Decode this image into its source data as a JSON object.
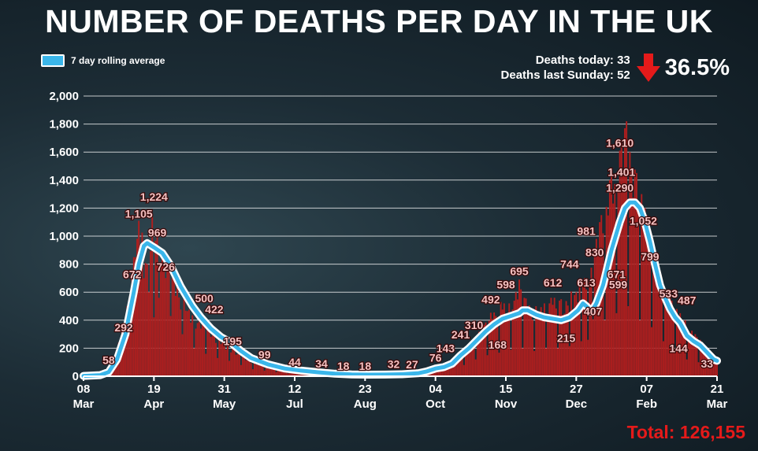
{
  "headline": "NUMBER OF DEATHS PER DAY IN THE UK",
  "legend": {
    "label": "7 day rolling average",
    "color": "#3ab6ea"
  },
  "stats": {
    "today_label": "Deaths today: 33",
    "last_sunday_label": "Deaths last Sunday: 52",
    "change": "36.5%",
    "change_direction": "down",
    "change_color": "#e51a1a"
  },
  "total": "Total: 126,155",
  "colors": {
    "bars": "#b01e1e",
    "line": "#3ab6ea",
    "line_outline": "#ffffff",
    "label_fill": "#f4c2c2"
  },
  "chart_data": {
    "type": "bar",
    "ylim": [
      0,
      2000
    ],
    "ytick_labels": [
      "0",
      "200",
      "400",
      "600",
      "800",
      "1,000",
      "1,200",
      "1,400",
      "1,600",
      "1,800",
      "2,000"
    ],
    "xticks": [
      {
        "day": 0,
        "date": "2020-03-08",
        "line1": "08",
        "line2": "Mar"
      },
      {
        "day": 42,
        "date": "2020-04-19",
        "line1": "19",
        "line2": "Apr"
      },
      {
        "day": 84,
        "date": "2020-05-31",
        "line1": "31",
        "line2": "May"
      },
      {
        "day": 126,
        "date": "2020-07-12",
        "line1": "12",
        "line2": "Jul"
      },
      {
        "day": 168,
        "date": "2020-08-23",
        "line1": "23",
        "line2": "Aug"
      },
      {
        "day": 210,
        "date": "2020-10-04",
        "line1": "04",
        "line2": "Oct"
      },
      {
        "day": 252,
        "date": "2020-11-15",
        "line1": "15",
        "line2": "Nov"
      },
      {
        "day": 294,
        "date": "2020-12-27",
        "line1": "27",
        "line2": "Dec"
      },
      {
        "day": 336,
        "date": "2021-02-07",
        "line1": "07",
        "line2": "Feb"
      },
      {
        "day": 378,
        "date": "2021-03-21",
        "line1": "21",
        "line2": "Mar"
      }
    ],
    "series": [
      {
        "name": "7 day rolling average",
        "type": "line",
        "points": [
          [
            0,
            2
          ],
          [
            10,
            8
          ],
          [
            15,
            30
          ],
          [
            20,
            120
          ],
          [
            25,
            300
          ],
          [
            30,
            600
          ],
          [
            33,
            800
          ],
          [
            36,
            930
          ],
          [
            38,
            950
          ],
          [
            42,
            920
          ],
          [
            47,
            880
          ],
          [
            52,
            790
          ],
          [
            58,
            640
          ],
          [
            65,
            500
          ],
          [
            70,
            420
          ],
          [
            76,
            340
          ],
          [
            82,
            280
          ],
          [
            88,
            240
          ],
          [
            94,
            180
          ],
          [
            100,
            130
          ],
          [
            110,
            85
          ],
          [
            120,
            55
          ],
          [
            130,
            40
          ],
          [
            140,
            28
          ],
          [
            150,
            18
          ],
          [
            160,
            13
          ],
          [
            170,
            11
          ],
          [
            180,
            12
          ],
          [
            190,
            14
          ],
          [
            200,
            22
          ],
          [
            205,
            35
          ],
          [
            210,
            55
          ],
          [
            215,
            65
          ],
          [
            220,
            90
          ],
          [
            225,
            150
          ],
          [
            230,
            200
          ],
          [
            235,
            260
          ],
          [
            240,
            320
          ],
          [
            245,
            370
          ],
          [
            250,
            410
          ],
          [
            255,
            430
          ],
          [
            260,
            450
          ],
          [
            262,
            470
          ],
          [
            265,
            470
          ],
          [
            270,
            440
          ],
          [
            275,
            420
          ],
          [
            280,
            410
          ],
          [
            285,
            400
          ],
          [
            290,
            420
          ],
          [
            295,
            470
          ],
          [
            298,
            520
          ],
          [
            300,
            500
          ],
          [
            303,
            460
          ],
          [
            306,
            520
          ],
          [
            310,
            650
          ],
          [
            315,
            900
          ],
          [
            320,
            1100
          ],
          [
            323,
            1200
          ],
          [
            326,
            1240
          ],
          [
            329,
            1240
          ],
          [
            332,
            1200
          ],
          [
            335,
            1100
          ],
          [
            338,
            960
          ],
          [
            341,
            800
          ],
          [
            344,
            650
          ],
          [
            347,
            560
          ],
          [
            350,
            480
          ],
          [
            353,
            420
          ],
          [
            356,
            380
          ],
          [
            360,
            290
          ],
          [
            364,
            250
          ],
          [
            368,
            220
          ],
          [
            372,
            170
          ],
          [
            376,
            120
          ],
          [
            378,
            110
          ]
        ]
      }
    ],
    "daily_peaks": [
      [
        10,
        10
      ],
      [
        15,
        40
      ],
      [
        20,
        200
      ],
      [
        23,
        320
      ],
      [
        26,
        500
      ],
      [
        29,
        700
      ],
      [
        31,
        1000
      ],
      [
        33,
        1110
      ],
      [
        34,
        950
      ],
      [
        36,
        1100
      ],
      [
        38,
        800
      ],
      [
        40,
        1050
      ],
      [
        42,
        1224
      ],
      [
        44,
        1050
      ],
      [
        45,
        950
      ],
      [
        47,
        900
      ],
      [
        48,
        800
      ],
      [
        50,
        850
      ],
      [
        52,
        700
      ],
      [
        54,
        700
      ],
      [
        56,
        650
      ],
      [
        58,
        560
      ],
      [
        60,
        600
      ],
      [
        62,
        500
      ],
      [
        64,
        450
      ],
      [
        66,
        420
      ],
      [
        68,
        380
      ],
      [
        70,
        400
      ],
      [
        72,
        430
      ],
      [
        74,
        350
      ],
      [
        76,
        330
      ],
      [
        78,
        300
      ],
      [
        80,
        260
      ],
      [
        82,
        270
      ],
      [
        84,
        230
      ],
      [
        86,
        220
      ],
      [
        88,
        200
      ],
      [
        90,
        190
      ],
      [
        92,
        170
      ],
      [
        95,
        150
      ],
      [
        100,
        110
      ],
      [
        105,
        90
      ],
      [
        110,
        75
      ],
      [
        115,
        60
      ],
      [
        120,
        48
      ],
      [
        125,
        40
      ],
      [
        130,
        32
      ],
      [
        140,
        25
      ],
      [
        150,
        20
      ],
      [
        160,
        16
      ],
      [
        170,
        14
      ],
      [
        180,
        15
      ],
      [
        190,
        18
      ],
      [
        200,
        25
      ],
      [
        205,
        40
      ],
      [
        210,
        65
      ],
      [
        215,
        90
      ],
      [
        220,
        120
      ],
      [
        225,
        160
      ],
      [
        228,
        210
      ],
      [
        232,
        250
      ],
      [
        235,
        300
      ],
      [
        238,
        350
      ],
      [
        241,
        400
      ],
      [
        244,
        480
      ],
      [
        246,
        430
      ],
      [
        248,
        500
      ],
      [
        250,
        560
      ],
      [
        252,
        480
      ],
      [
        254,
        520
      ],
      [
        256,
        560
      ],
      [
        258,
        600
      ],
      [
        260,
        690
      ],
      [
        261,
        620
      ],
      [
        263,
        560
      ],
      [
        265,
        550
      ],
      [
        267,
        460
      ],
      [
        270,
        500
      ],
      [
        272,
        480
      ],
      [
        275,
        520
      ],
      [
        277,
        480
      ],
      [
        280,
        600
      ],
      [
        282,
        520
      ],
      [
        285,
        550
      ],
      [
        287,
        480
      ],
      [
        290,
        650
      ],
      [
        292,
        560
      ],
      [
        294,
        600
      ],
      [
        296,
        640
      ],
      [
        298,
        780
      ],
      [
        300,
        620
      ],
      [
        302,
        720
      ],
      [
        304,
        830
      ],
      [
        306,
        980
      ],
      [
        308,
        1100
      ],
      [
        310,
        1200
      ],
      [
        312,
        1300
      ],
      [
        314,
        1400
      ],
      [
        316,
        1450
      ],
      [
        318,
        1500
      ],
      [
        320,
        1610
      ],
      [
        322,
        1720
      ],
      [
        324,
        1820
      ],
      [
        326,
        1600
      ],
      [
        328,
        1500
      ],
      [
        330,
        1450
      ],
      [
        332,
        1350
      ],
      [
        334,
        1250
      ],
      [
        336,
        1150
      ],
      [
        338,
        1050
      ],
      [
        340,
        900
      ],
      [
        342,
        800
      ],
      [
        344,
        700
      ],
      [
        346,
        650
      ],
      [
        348,
        600
      ],
      [
        350,
        560
      ],
      [
        352,
        520
      ],
      [
        354,
        480
      ],
      [
        356,
        450
      ],
      [
        358,
        420
      ],
      [
        360,
        380
      ],
      [
        362,
        330
      ],
      [
        364,
        320
      ],
      [
        366,
        280
      ],
      [
        368,
        260
      ],
      [
        370,
        230
      ],
      [
        372,
        190
      ],
      [
        374,
        170
      ],
      [
        376,
        130
      ],
      [
        378,
        100
      ]
    ],
    "dips": [
      [
        36,
        700
      ],
      [
        39,
        600
      ],
      [
        42,
        420
      ],
      [
        45,
        560
      ],
      [
        52,
        430
      ],
      [
        59,
        300
      ],
      [
        66,
        200
      ],
      [
        73,
        160
      ],
      [
        80,
        130
      ],
      [
        87,
        110
      ],
      [
        94,
        80
      ],
      [
        101,
        50
      ],
      [
        108,
        40
      ],
      [
        115,
        30
      ],
      [
        122,
        20
      ],
      [
        129,
        12
      ],
      [
        136,
        10
      ],
      [
        143,
        8
      ],
      [
        150,
        8
      ],
      [
        157,
        6
      ],
      [
        164,
        6
      ],
      [
        171,
        6
      ],
      [
        178,
        8
      ],
      [
        185,
        10
      ],
      [
        192,
        12
      ],
      [
        199,
        15
      ],
      [
        206,
        20
      ],
      [
        213,
        40
      ],
      [
        220,
        60
      ],
      [
        227,
        80
      ],
      [
        234,
        120
      ],
      [
        241,
        150
      ],
      [
        248,
        168
      ],
      [
        255,
        190
      ],
      [
        262,
        200
      ],
      [
        269,
        180
      ],
      [
        276,
        200
      ],
      [
        283,
        200
      ],
      [
        290,
        215
      ],
      [
        297,
        250
      ],
      [
        301,
        260
      ],
      [
        304,
        407
      ],
      [
        311,
        400
      ],
      [
        318,
        450
      ],
      [
        325,
        500
      ],
      [
        332,
        400
      ],
      [
        339,
        350
      ],
      [
        346,
        250
      ],
      [
        353,
        170
      ],
      [
        360,
        120
      ],
      [
        367,
        100
      ],
      [
        374,
        60
      ]
    ],
    "annotations": [
      {
        "day": 15,
        "value": 58,
        "label": "58"
      },
      {
        "day": 24,
        "value": 292,
        "label": "292"
      },
      {
        "day": 29,
        "value": 672,
        "label": "672"
      },
      {
        "day": 33,
        "value": 1105,
        "label": "1,105"
      },
      {
        "day": 42,
        "value": 1224,
        "label": "1,224"
      },
      {
        "day": 44,
        "value": 969,
        "label": "969"
      },
      {
        "day": 49,
        "value": 726,
        "label": "726"
      },
      {
        "day": 72,
        "value": 500,
        "label": "500"
      },
      {
        "day": 78,
        "value": 422,
        "label": "422"
      },
      {
        "day": 89,
        "value": 195,
        "label": "195"
      },
      {
        "day": 108,
        "value": 99,
        "label": "99"
      },
      {
        "day": 126,
        "value": 44,
        "label": "44"
      },
      {
        "day": 142,
        "value": 34,
        "label": "34"
      },
      {
        "day": 155,
        "value": 18,
        "label": "18"
      },
      {
        "day": 168,
        "value": 18,
        "label": "18"
      },
      {
        "day": 185,
        "value": 32,
        "label": "32"
      },
      {
        "day": 196,
        "value": 27,
        "label": "27"
      },
      {
        "day": 210,
        "value": 76,
        "label": "76"
      },
      {
        "day": 216,
        "value": 143,
        "label": "143"
      },
      {
        "day": 225,
        "value": 241,
        "label": "241"
      },
      {
        "day": 233,
        "value": 310,
        "label": "310"
      },
      {
        "day": 243,
        "value": 492,
        "label": "492"
      },
      {
        "day": 252,
        "value": 598,
        "label": "598"
      },
      {
        "day": 260,
        "value": 695,
        "label": "695"
      },
      {
        "day": 247,
        "value": 168,
        "label": "168"
      },
      {
        "day": 280,
        "value": 612,
        "label": "612"
      },
      {
        "day": 290,
        "value": 744,
        "label": "744"
      },
      {
        "day": 288,
        "value": 215,
        "label": "215"
      },
      {
        "day": 300,
        "value": 981,
        "label": "981"
      },
      {
        "day": 300,
        "value": 613,
        "label": "613"
      },
      {
        "day": 305,
        "value": 830,
        "label": "830"
      },
      {
        "day": 304,
        "value": 407,
        "label": "407"
      },
      {
        "day": 318,
        "value": 671,
        "label": "671"
      },
      {
        "day": 319,
        "value": 599,
        "label": "599"
      },
      {
        "day": 320,
        "value": 1610,
        "label": "1,610"
      },
      {
        "day": 321,
        "value": 1401,
        "label": "1,401"
      },
      {
        "day": 320,
        "value": 1290,
        "label": "1,290"
      },
      {
        "day": 334,
        "value": 1052,
        "label": "1,052"
      },
      {
        "day": 338,
        "value": 799,
        "label": "799"
      },
      {
        "day": 349,
        "value": 533,
        "label": "533"
      },
      {
        "day": 360,
        "value": 487,
        "label": "487"
      },
      {
        "day": 355,
        "value": 144,
        "label": "144"
      },
      {
        "day": 372,
        "value": 33,
        "label": "33"
      }
    ]
  }
}
